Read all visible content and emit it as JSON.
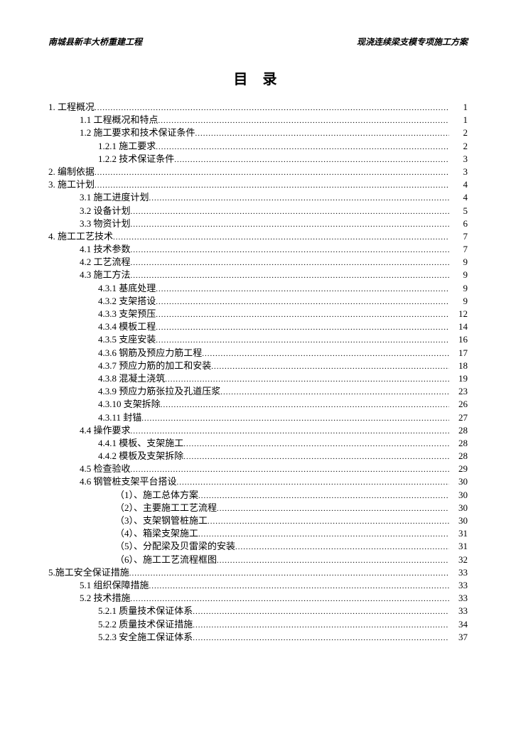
{
  "header": {
    "left": "南城县新丰大桥重建工程",
    "right": "现浇连续梁支模专项施工方案"
  },
  "title": "目 录",
  "toc": [
    {
      "indent": 0,
      "label": "1. 工程概况",
      "page": "1"
    },
    {
      "indent": 1,
      "label": "1.1 工程概况和特点",
      "page": "1"
    },
    {
      "indent": 1,
      "label": "1.2 施工要求和技术保证条件",
      "page": "2"
    },
    {
      "indent": 2,
      "label": "1.2.1 施工要求",
      "page": "2"
    },
    {
      "indent": 2,
      "label": "1.2.2 技术保证条件",
      "page": "3"
    },
    {
      "indent": 0,
      "label": "2. 编制依据",
      "page": "3"
    },
    {
      "indent": 0,
      "label": "3. 施工计划",
      "page": "4"
    },
    {
      "indent": 1,
      "label": "3.1 施工进度计划",
      "page": "4"
    },
    {
      "indent": 1,
      "label": "3.2 设备计划",
      "page": "5"
    },
    {
      "indent": 1,
      "label": "3.3 物资计划",
      "page": "6"
    },
    {
      "indent": 0,
      "label": "4. 施工工艺技术",
      "page": "7"
    },
    {
      "indent": 1,
      "label": "4.1 技术参数",
      "page": "7"
    },
    {
      "indent": 1,
      "label": "4.2 工艺流程",
      "page": "9"
    },
    {
      "indent": 1,
      "label": "4.3 施工方法",
      "page": "9"
    },
    {
      "indent": 2,
      "label": "4.3.1 基底处理",
      "page": "9"
    },
    {
      "indent": 2,
      "label": "4.3.2 支架搭设",
      "page": "9"
    },
    {
      "indent": 2,
      "label": "4.3.3 支架预压",
      "page": "12"
    },
    {
      "indent": 2,
      "label": "4.3.4 模板工程",
      "page": "14"
    },
    {
      "indent": 2,
      "label": "4.3.5 支座安装",
      "page": "16"
    },
    {
      "indent": 2,
      "label": "4.3.6 钢筋及预应力筋工程",
      "page": "17"
    },
    {
      "indent": 2,
      "label": "4.3.7 预应力筋的加工和安装",
      "page": "18"
    },
    {
      "indent": 2,
      "label": "4.3.8 混凝土浇筑",
      "page": "19"
    },
    {
      "indent": 2,
      "label": "4.3.9 预应力筋张拉及孔道压浆",
      "page": "23"
    },
    {
      "indent": 2,
      "label": "4.3.10 支架拆除",
      "page": "26"
    },
    {
      "indent": 2,
      "label": "4.3.11 封锚",
      "page": "27"
    },
    {
      "indent": 1,
      "label": "4.4 操作要求",
      "page": "28"
    },
    {
      "indent": 2,
      "label": "4.4.1 模板、支架施工",
      "page": "28"
    },
    {
      "indent": 2,
      "label": "4.4.2 模板及支架拆除",
      "page": "28"
    },
    {
      "indent": 1,
      "label": "4.5 检查验收",
      "page": "29"
    },
    {
      "indent": 1,
      "label": "4.6 钢管桩支架平台搭设",
      "page": "30"
    },
    {
      "indent": 3,
      "label": "（1）、施工总体方案",
      "page": "30"
    },
    {
      "indent": 3,
      "label": "（2）、主要施工工艺流程",
      "page": "30"
    },
    {
      "indent": 3,
      "label": "（3）、支架钢管桩施工",
      "page": "30"
    },
    {
      "indent": 3,
      "label": "（4）、箱梁支架施工",
      "page": "31"
    },
    {
      "indent": 3,
      "label": "（5）、分配梁及贝雷梁的安装",
      "page": "31"
    },
    {
      "indent": 3,
      "label": "（6）、施工工艺流程框图",
      "page": "32"
    },
    {
      "indent": 0,
      "label": "5.施工安全保证措施",
      "page": "33"
    },
    {
      "indent": 1,
      "label": "5.1 组织保障措施",
      "page": "33"
    },
    {
      "indent": 1,
      "label": "5.2 技术措施",
      "page": "33"
    },
    {
      "indent": 2,
      "label": "5.2.1 质量技术保证体系",
      "page": "33"
    },
    {
      "indent": 2,
      "label": "5.2.2 质量技术保证措施",
      "page": "34"
    },
    {
      "indent": 2,
      "label": "5.2.3 安全施工保证体系",
      "page": "37"
    }
  ]
}
